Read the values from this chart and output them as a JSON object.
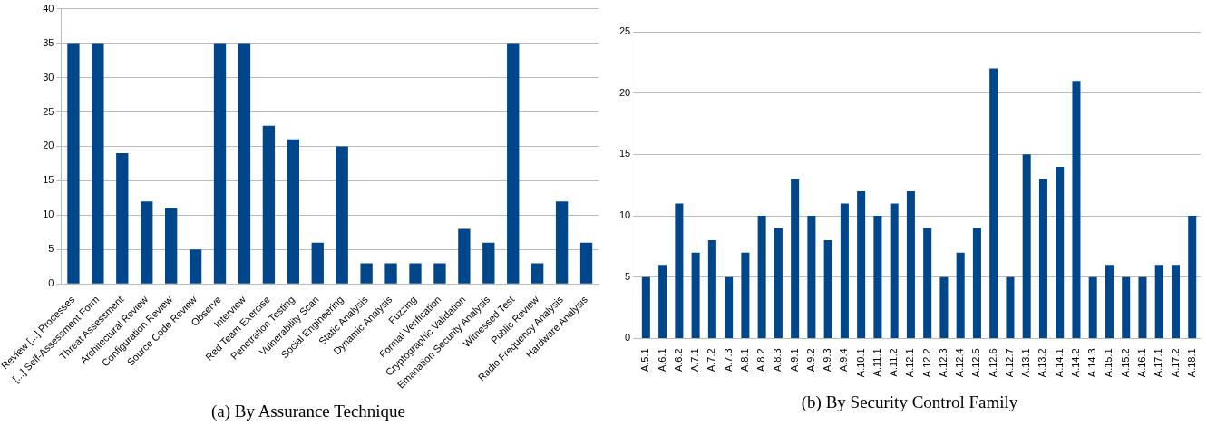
{
  "chart_data": [
    {
      "type": "bar",
      "title": "(a) By Assurance Technique",
      "categories": [
        "Review [...] Processes",
        "[...] Self-Assessment Form",
        "Threat Assessment",
        "Architectural Review",
        "Configuration Review",
        "Source Code Review",
        "Observe",
        "Interview",
        "Red Team Exercise",
        "Penetration Testing",
        "Vulnerability Scan",
        "Social Engineering",
        "Static Analysis",
        "Dynamic Analysis",
        "Fuzzing",
        "Formal Verification",
        "Cryptographic Validation",
        "Emanation Security Analysis",
        "Witnessed Test",
        "Public Review",
        "Radio Frequency Analysis",
        "Hardware Analysis"
      ],
      "values": [
        35,
        35,
        19,
        12,
        11,
        5,
        35,
        35,
        23,
        21,
        6,
        20,
        3,
        3,
        3,
        3,
        8,
        6,
        35,
        3,
        12,
        6
      ],
      "color": "#00468b",
      "ylim": [
        0,
        40
      ],
      "yticks": [
        0,
        5,
        10,
        15,
        20,
        25,
        30,
        35,
        40
      ],
      "grid": "y",
      "legend": false
    },
    {
      "type": "bar",
      "title": "(b) By Security Control Family",
      "categories": [
        "A.5.1",
        "A.6.1",
        "A.6.2",
        "A.7.1",
        "A.7.2",
        "A.7.3",
        "A.8.1",
        "A.8.2",
        "A.8.3",
        "A.9.1",
        "A.9.2",
        "A.9.3",
        "A.9.4",
        "A.10.1",
        "A.11.1",
        "A.11.2",
        "A.12.1",
        "A.12.2",
        "A.12.3",
        "A.12.4",
        "A.12.5",
        "A.12.6",
        "A.12.7",
        "A.13.1",
        "A.13.2",
        "A.14.1",
        "A.14.2",
        "A.14.3",
        "A.15.1",
        "A.15.2",
        "A.16.1",
        "A.17.1",
        "A.17.2",
        "A.18.1"
      ],
      "values": [
        5,
        6,
        11,
        7,
        8,
        5,
        7,
        10,
        9,
        13,
        10,
        8,
        11,
        12,
        10,
        11,
        12,
        9,
        5,
        7,
        9,
        22,
        5,
        15,
        13,
        14,
        21,
        5,
        6,
        5,
        5,
        6,
        6,
        10
      ],
      "color": "#00468b",
      "ylim": [
        0,
        25
      ],
      "yticks": [
        0,
        5,
        10,
        15,
        20,
        25
      ],
      "grid": "y",
      "legend": false
    }
  ]
}
